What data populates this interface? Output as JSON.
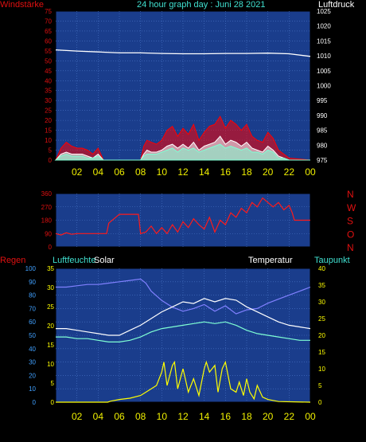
{
  "header": {
    "title": "24 hour graph day : Juni 28 2021",
    "left_label": "Windstärke",
    "right_label": "Luftdruck"
  },
  "colors": {
    "plot_bg": "#1a3d8c",
    "grid": "#4a76c8",
    "wind_label": "#e01010",
    "title": "#40e0d0",
    "hour_labels": "#f0f000",
    "wind_speed": "#ff0000",
    "wind_gust": "#ffffff",
    "wind_avg": "#7fffd4",
    "pressure": "#ffffff",
    "direction": "#ff1a1a",
    "rain": "#ffff00",
    "humidity": "#8080ff",
    "temperature": "#ffffff",
    "dewpoint": "#7fffd4",
    "solar": "#ffff00"
  },
  "hour_ticks": [
    "02",
    "04",
    "06",
    "08",
    "10",
    "12",
    "14",
    "16",
    "18",
    "20",
    "22",
    "00"
  ],
  "wind_panel": {
    "left_ticks": [
      "75",
      "70",
      "65",
      "60",
      "55",
      "50",
      "45",
      "40",
      "35",
      "30",
      "25",
      "20",
      "15",
      "10",
      "5",
      "0"
    ],
    "right_ticks": [
      "1025",
      "1020",
      "1015",
      "1010",
      "1005",
      "1000",
      "995",
      "990",
      "985",
      "980",
      "975"
    ]
  },
  "dir_panel": {
    "left_ticks": [
      "360",
      "270",
      "180",
      "90",
      "0"
    ],
    "compass": [
      "N",
      "W",
      "S",
      "O",
      "N"
    ]
  },
  "bottom_panel": {
    "labels": {
      "rain": "Regen",
      "humidity": "Luftfeuchte",
      "solar": "Solar",
      "temperature": "Temperatur",
      "dewpoint": "Taupunkt"
    },
    "rain_ticks": [
      "100",
      "90",
      "80",
      "70",
      "60",
      "50",
      "40",
      "30",
      "20",
      "10",
      "0"
    ],
    "hum_ticks": [
      "35",
      "30",
      "25",
      "20",
      "15",
      "10",
      "5",
      "0"
    ],
    "temp_ticks": [
      "40",
      "35",
      "30",
      "25",
      "20",
      "15",
      "10",
      "5",
      "0"
    ]
  },
  "chart_data": [
    {
      "type": "line",
      "x_unit": "hour",
      "xlim": [
        0,
        24
      ],
      "ylim_left": [
        0,
        75
      ],
      "ylim_right": [
        975,
        1025
      ],
      "series": [
        {
          "key": "pressure",
          "axis": "right",
          "x": [
            0,
            2,
            4,
            6,
            8,
            10,
            12,
            14,
            16,
            18,
            20,
            22,
            24
          ],
          "values": [
            1012.0,
            1011.6,
            1011.3,
            1011.0,
            1011.0,
            1010.8,
            1010.7,
            1010.7,
            1010.8,
            1010.8,
            1010.9,
            1010.7,
            1009.8
          ]
        },
        {
          "key": "wind_speed",
          "axis": "left",
          "x": [
            0,
            0.5,
            1,
            1.5,
            2,
            2.5,
            3,
            3.5,
            4,
            4.5,
            8,
            8.3,
            8.6,
            9,
            9.5,
            10,
            10.5,
            11,
            11.5,
            12,
            12.5,
            13,
            13.5,
            14,
            14.5,
            15,
            15.5,
            16,
            16.5,
            17,
            17.5,
            18,
            18.5,
            19,
            19.5,
            20,
            20.5,
            21,
            21.5,
            22,
            24
          ],
          "values": [
            0,
            6,
            9,
            7,
            6,
            6,
            5,
            3,
            6,
            0,
            0,
            7,
            10,
            9,
            8,
            10,
            15,
            17,
            12,
            16,
            13,
            18,
            10,
            14,
            17,
            18,
            22,
            16,
            20,
            18,
            15,
            18,
            12,
            10,
            9,
            14,
            11,
            5,
            3,
            1,
            0
          ]
        },
        {
          "key": "wind_gust",
          "axis": "left",
          "x": [
            0,
            0.5,
            1,
            1.5,
            2,
            2.5,
            3,
            3.5,
            4,
            4.5,
            8,
            8.3,
            8.6,
            9,
            9.5,
            10,
            10.5,
            11,
            11.5,
            12,
            12.5,
            13,
            13.5,
            14,
            14.5,
            15,
            15.5,
            16,
            16.5,
            17,
            17.5,
            18,
            18.5,
            19,
            19.5,
            20,
            20.5,
            21,
            21.5,
            22,
            24
          ],
          "values": [
            0,
            3,
            4,
            3,
            3,
            3,
            2,
            1,
            3,
            0,
            0,
            3,
            5,
            4,
            4,
            5,
            7,
            8,
            6,
            8,
            6,
            9,
            5,
            7,
            8,
            9,
            12,
            8,
            10,
            9,
            7,
            9,
            6,
            5,
            4,
            7,
            5,
            2,
            1,
            0,
            0
          ]
        },
        {
          "key": "wind_avg",
          "axis": "left",
          "x": [
            0,
            0.5,
            1,
            1.5,
            2,
            2.5,
            3,
            3.5,
            4,
            4.5,
            8,
            8.3,
            8.6,
            9,
            9.5,
            10,
            10.5,
            11,
            11.5,
            12,
            12.5,
            13,
            13.5,
            14,
            14.5,
            15,
            15.5,
            16,
            16.5,
            17,
            17.5,
            18,
            18.5,
            19,
            19.5,
            20,
            20.5,
            21,
            21.5,
            22,
            24
          ],
          "values": [
            0,
            2,
            3,
            2,
            2,
            2,
            1,
            1,
            2,
            0,
            0,
            2,
            3,
            3,
            3,
            4,
            5,
            6,
            4,
            6,
            5,
            6,
            4,
            5,
            6,
            7,
            8,
            6,
            7,
            6,
            5,
            6,
            4,
            4,
            3,
            5,
            4,
            1,
            1,
            0,
            0
          ]
        }
      ]
    },
    {
      "type": "line",
      "x_unit": "hour",
      "xlim": [
        0,
        24
      ],
      "ylim": [
        0,
        360
      ],
      "series": [
        {
          "key": "wind_direction",
          "x": [
            0,
            0.5,
            1,
            1.5,
            2,
            3,
            4,
            4.5,
            4.8,
            5,
            6,
            7,
            7.5,
            7.8,
            8,
            8.5,
            9,
            9.5,
            10,
            10.5,
            11,
            11.5,
            12,
            12.5,
            13,
            13.5,
            14,
            14.5,
            15,
            15.5,
            16,
            16.5,
            17,
            17.5,
            18,
            18.5,
            19,
            19.5,
            20,
            20.5,
            21,
            21.5,
            22,
            22.3,
            22.5,
            24
          ],
          "values": [
            90,
            80,
            95,
            85,
            90,
            90,
            90,
            90,
            90,
            160,
            220,
            220,
            220,
            220,
            90,
            100,
            140,
            90,
            130,
            90,
            150,
            100,
            170,
            130,
            190,
            150,
            120,
            200,
            100,
            180,
            150,
            230,
            200,
            260,
            230,
            300,
            270,
            330,
            300,
            270,
            300,
            250,
            280,
            230,
            180,
            180
          ]
        }
      ]
    },
    {
      "type": "line",
      "x_unit": "hour",
      "xlim": [
        0,
        24
      ],
      "ylim_temperature": [
        0,
        40
      ],
      "ylim_solar": [
        0,
        35
      ],
      "ylim_humidity": [
        0,
        100
      ],
      "series": [
        {
          "key": "humidity",
          "axis": "rain",
          "x": [
            0,
            1,
            2,
            3,
            4,
            5,
            6,
            7,
            8,
            8.5,
            9,
            10,
            11,
            12,
            13,
            14,
            15,
            16,
            17,
            18,
            19,
            20,
            21,
            22,
            23,
            24
          ],
          "values": [
            86,
            86,
            87,
            88,
            88,
            89,
            90,
            91,
            92,
            89,
            83,
            76,
            71,
            68,
            70,
            73,
            68,
            72,
            66,
            69,
            70,
            74,
            77,
            80,
            83,
            86
          ]
        },
        {
          "key": "temperature",
          "axis": "temp",
          "x": [
            0,
            1,
            2,
            3,
            4,
            5,
            6,
            7,
            8,
            9,
            10,
            11,
            12,
            13,
            14,
            15,
            16,
            17,
            18,
            19,
            20,
            21,
            22,
            23,
            24
          ],
          "values": [
            22,
            22,
            21.5,
            21,
            20.5,
            20,
            20,
            21.5,
            23,
            25,
            27,
            28.5,
            30,
            29.5,
            31,
            30,
            31,
            30.5,
            28.5,
            27,
            25.5,
            24,
            23,
            22.5,
            22
          ]
        },
        {
          "key": "dewpoint",
          "axis": "temp",
          "x": [
            0,
            1,
            2,
            3,
            4,
            5,
            6,
            7,
            8,
            9,
            10,
            11,
            12,
            13,
            14,
            15,
            16,
            17,
            18,
            19,
            20,
            21,
            22,
            23,
            24
          ],
          "values": [
            19.5,
            19.5,
            19,
            19,
            18.5,
            18,
            18,
            18.5,
            19.5,
            21,
            22,
            22.5,
            23,
            23.5,
            24,
            23.5,
            24,
            23,
            21.5,
            20.5,
            20,
            19.5,
            19,
            18.5,
            18.5
          ]
        },
        {
          "key": "solar",
          "axis": "temp",
          "x": [
            0,
            4.9,
            5.2,
            6,
            7,
            8,
            9,
            9.5,
            10,
            10.2,
            10.5,
            11,
            11.2,
            11.5,
            12,
            12.5,
            13,
            13.5,
            14,
            14.2,
            14.5,
            15,
            15.3,
            15.7,
            16,
            16.5,
            17,
            17.3,
            17.7,
            18,
            18.3,
            18.7,
            19,
            19.5,
            20,
            21,
            24
          ],
          "values": [
            0,
            0,
            0.3,
            0.8,
            1.2,
            2,
            4,
            5,
            9,
            12,
            5,
            11,
            12,
            4,
            10,
            3,
            7,
            2,
            10,
            12,
            9,
            11,
            3,
            10,
            12,
            4,
            3,
            6,
            2,
            7,
            3,
            1,
            5,
            1.5,
            0.8,
            0.2,
            0
          ]
        }
      ]
    }
  ]
}
